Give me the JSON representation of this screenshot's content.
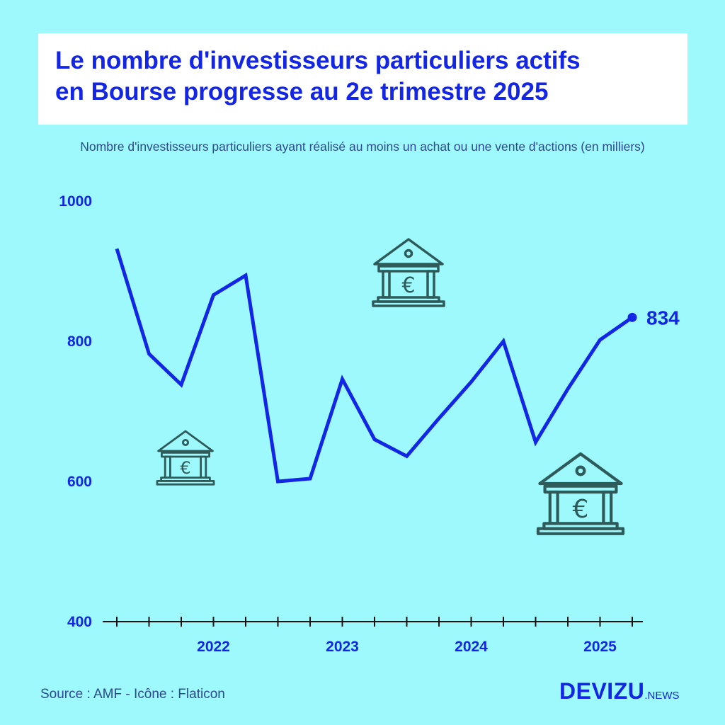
{
  "title": {
    "line1": "Le nombre d'investisseurs particuliers actifs",
    "line2": "en Bourse progresse au 2e trimestre 2025"
  },
  "subtitle": "Nombre d'investisseurs particuliers ayant réalisé au moins un achat ou une vente d'actions (en milliers)",
  "source": "Source : AMF - Icône : Flaticon",
  "brand": {
    "main": "DEVIZU",
    "sub": ".NEWS"
  },
  "colors": {
    "background": "#9ef9fc",
    "line": "#1326e6",
    "title": "#1326e6",
    "icon": "#2e5a5a"
  },
  "icons": [
    "bank-euro-icon",
    "bank-euro-icon",
    "bank-euro-icon"
  ],
  "chart_data": {
    "type": "line",
    "title": "Le nombre d'investisseurs particuliers actifs en Bourse progresse au 2e trimestre 2025",
    "ylabel": "",
    "xlabel": "",
    "ylim": [
      400,
      1000
    ],
    "yticks": [
      400,
      600,
      800,
      1000
    ],
    "xtick_labels": [
      {
        "label": "2022",
        "at": 3
      },
      {
        "label": "2023",
        "at": 7
      },
      {
        "label": "2024",
        "at": 11
      },
      {
        "label": "2025",
        "at": 15
      }
    ],
    "grid": false,
    "x": [
      "T2 2021",
      "T3 2021",
      "T4 2021",
      "T1 2022",
      "T2 2022",
      "T3 2022",
      "T4 2022",
      "T1 2023",
      "T2 2023",
      "T3 2023",
      "T4 2023",
      "T1 2024",
      "T2 2024",
      "T3 2024",
      "T4 2024",
      "T1 2025",
      "T2 2025"
    ],
    "series": [
      {
        "values": [
          932,
          782,
          738,
          866,
          894,
          600,
          604,
          746,
          660,
          636,
          690,
          742,
          800,
          656,
          732,
          802,
          834
        ]
      }
    ],
    "annotations": [
      {
        "text": "834",
        "point_index": 16
      }
    ]
  }
}
